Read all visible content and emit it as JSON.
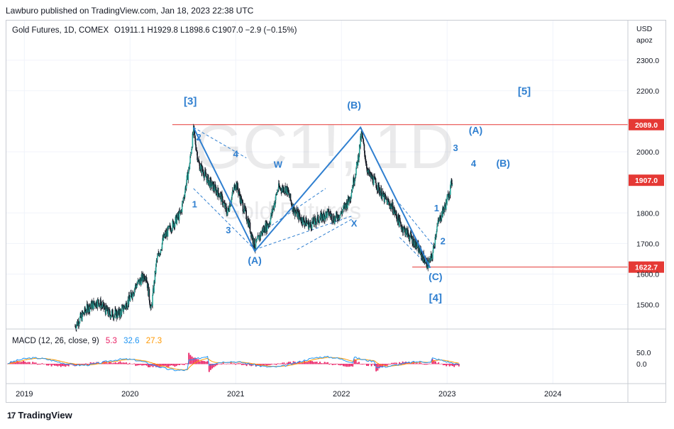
{
  "publisher": "Lawburo published on TradingView.com, Jan 18, 2023 22:38 UTC",
  "brand": "TradingView",
  "watermark": {
    "symbol": "GC1!, 1D",
    "name": "Gold Futures"
  },
  "legend": {
    "title": "Gold Futures, 1D, COMEX",
    "ohlc": "O1911.1  H1929.8  L1898.6  C1907.0  −2.9 (−0.15%)"
  },
  "price_axis": {
    "currency": "USD",
    "unit": "apoz"
  },
  "macd": {
    "label": "MACD (12, 26, close, 9)",
    "v1": "5.3",
    "v2": "32.6",
    "v3": "27.3",
    "ticks": [
      {
        "value": 50,
        "label": "50.0"
      },
      {
        "value": 0,
        "label": "0.0"
      }
    ],
    "colors": {
      "macd": "#2196f3",
      "signal": "#ff9800",
      "hist": "#e91e63"
    }
  },
  "colors": {
    "wave": "#2f7fd0",
    "level": "#e53935",
    "candle": "#131722"
  },
  "chart_data": {
    "type": "line",
    "x_ticks": [
      {
        "t": 2019.0,
        "label": "2019"
      },
      {
        "t": 2020.0,
        "label": "2020"
      },
      {
        "t": 2021.0,
        "label": "2021"
      },
      {
        "t": 2022.0,
        "label": "2022"
      },
      {
        "t": 2023.0,
        "label": "2023"
      },
      {
        "t": 2024.0,
        "label": "2024"
      }
    ],
    "xlim": [
      2018.83,
      2024.71
    ],
    "ylim": [
      1420,
      2360
    ],
    "y_ticks": [
      {
        "value": 2300,
        "label": "2300.0"
      },
      {
        "value": 2200,
        "label": "2200.0"
      },
      {
        "value": 2000,
        "label": "2000.0"
      },
      {
        "value": 1800,
        "label": "1800.0"
      },
      {
        "value": 1700,
        "label": "1700.0"
      },
      {
        "value": 1600,
        "label": "1600.0"
      },
      {
        "value": 1500,
        "label": "1500.0"
      }
    ],
    "levels": [
      {
        "value": 2089.0,
        "label": "2089.0",
        "t0": 2020.4
      },
      {
        "value": 1622.7,
        "label": "1622.7",
        "t0": 2022.67
      }
    ],
    "current": {
      "value": 1907.0,
      "label": "1907.0"
    },
    "price_path": [
      [
        2019.48,
        1430
      ],
      [
        2019.6,
        1490
      ],
      [
        2019.7,
        1510
      ],
      [
        2019.8,
        1470
      ],
      [
        2019.9,
        1470
      ],
      [
        2020.0,
        1520
      ],
      [
        2020.05,
        1560
      ],
      [
        2020.15,
        1600
      ],
      [
        2020.2,
        1480
      ],
      [
        2020.25,
        1640
      ],
      [
        2020.32,
        1720
      ],
      [
        2020.4,
        1760
      ],
      [
        2020.48,
        1800
      ],
      [
        2020.56,
        1950
      ],
      [
        2020.6,
        2070
      ],
      [
        2020.65,
        1960
      ],
      [
        2020.75,
        1900
      ],
      [
        2020.85,
        1860
      ],
      [
        2020.92,
        1800
      ],
      [
        2021.0,
        1900
      ],
      [
        2021.05,
        1840
      ],
      [
        2021.12,
        1770
      ],
      [
        2021.18,
        1690
      ],
      [
        2021.25,
        1740
      ],
      [
        2021.32,
        1770
      ],
      [
        2021.4,
        1880
      ],
      [
        2021.48,
        1880
      ],
      [
        2021.55,
        1810
      ],
      [
        2021.62,
        1780
      ],
      [
        2021.7,
        1760
      ],
      [
        2021.78,
        1780
      ],
      [
        2021.88,
        1800
      ],
      [
        2021.93,
        1780
      ],
      [
        2022.0,
        1800
      ],
      [
        2022.08,
        1850
      ],
      [
        2022.15,
        1960
      ],
      [
        2022.19,
        2060
      ],
      [
        2022.25,
        1930
      ],
      [
        2022.32,
        1900
      ],
      [
        2022.4,
        1850
      ],
      [
        2022.48,
        1820
      ],
      [
        2022.56,
        1760
      ],
      [
        2022.63,
        1730
      ],
      [
        2022.7,
        1700
      ],
      [
        2022.78,
        1650
      ],
      [
        2022.82,
        1630
      ],
      [
        2022.86,
        1660
      ],
      [
        2022.9,
        1750
      ],
      [
        2022.94,
        1790
      ],
      [
        2022.98,
        1820
      ],
      [
        2023.03,
        1880
      ],
      [
        2023.05,
        1907
      ]
    ],
    "wave_path": [
      [
        2020.6,
        2080
      ],
      [
        2021.18,
        1675
      ],
      [
        2022.18,
        2080
      ],
      [
        2022.84,
        1620
      ]
    ],
    "channel_lines": [
      [
        [
          2020.6,
          2080
        ],
        [
          2021.1,
          1980
        ]
      ],
      [
        [
          2020.6,
          1880
        ],
        [
          2021.18,
          1680
        ]
      ],
      [
        [
          2021.18,
          1680
        ],
        [
          2022.1,
          1790
        ]
      ],
      [
        [
          2021.3,
          1750
        ],
        [
          2021.85,
          1880
        ]
      ],
      [
        [
          2021.58,
          1680
        ],
        [
          2022.1,
          1780
        ]
      ],
      [
        [
          2022.55,
          1720
        ],
        [
          2022.84,
          1620
        ]
      ],
      [
        [
          2022.55,
          1830
        ],
        [
          2022.9,
          1680
        ]
      ]
    ],
    "wave_labels": [
      {
        "t": 2020.57,
        "y": 2155,
        "text": "[3]",
        "size": 15
      },
      {
        "t": 2020.65,
        "y": 2037,
        "text": "2",
        "size": 13
      },
      {
        "t": 2020.61,
        "y": 1818,
        "text": "1",
        "size": 13
      },
      {
        "t": 2021.0,
        "y": 1983,
        "text": "4",
        "size": 13
      },
      {
        "t": 2020.93,
        "y": 1733,
        "text": "3",
        "size": 13
      },
      {
        "t": 2021.18,
        "y": 1633,
        "text": "(A)",
        "size": 14
      },
      {
        "t": 2021.4,
        "y": 1948,
        "text": "W",
        "size": 13
      },
      {
        "t": 2022.12,
        "y": 2142,
        "text": "(B)",
        "size": 14
      },
      {
        "t": 2022.12,
        "y": 1755,
        "text": "X",
        "size": 13
      },
      {
        "t": 2022.9,
        "y": 1805,
        "text": "1",
        "size": 13
      },
      {
        "t": 2022.96,
        "y": 1697,
        "text": "2",
        "size": 13
      },
      {
        "t": 2022.89,
        "y": 1580,
        "text": "(C)",
        "size": 14
      },
      {
        "t": 2022.89,
        "y": 1510,
        "text": "[4]",
        "size": 15
      },
      {
        "t": 2023.08,
        "y": 2003,
        "text": "3",
        "size": 13
      },
      {
        "t": 2023.27,
        "y": 2060,
        "text": "(A)",
        "size": 14
      },
      {
        "t": 2023.25,
        "y": 1952,
        "text": "4",
        "size": 13
      },
      {
        "t": 2023.53,
        "y": 1952,
        "text": "(B)",
        "size": 14
      },
      {
        "t": 2023.73,
        "y": 2187,
        "text": "[5]",
        "size": 15
      }
    ]
  }
}
